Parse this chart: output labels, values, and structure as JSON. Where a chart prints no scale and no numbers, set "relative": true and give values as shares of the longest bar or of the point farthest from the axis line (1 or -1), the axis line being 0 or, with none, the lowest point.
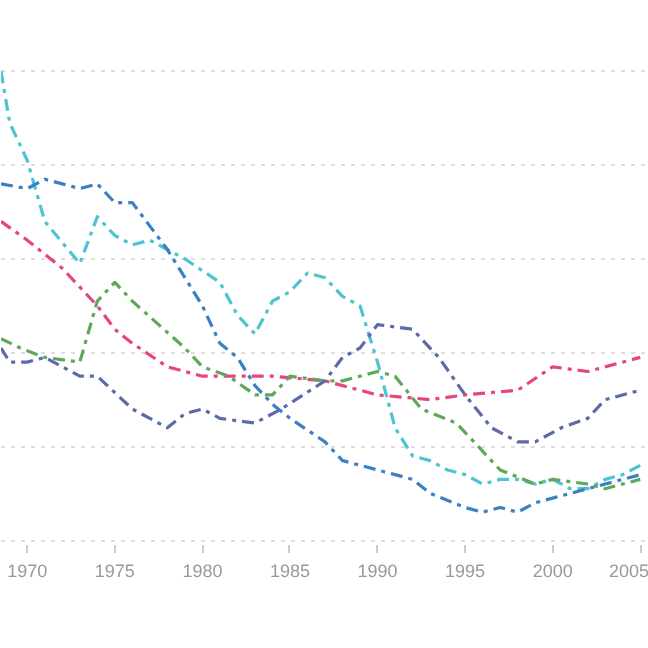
{
  "chart_data": {
    "type": "line",
    "relative": true,
    "grid": "y",
    "line_style": "dashdot",
    "xlim": [
      1968.5,
      2005.5
    ],
    "xticks": [
      1970,
      1975,
      1980,
      1985,
      1990,
      1995,
      2000,
      2005
    ],
    "series": [
      {
        "color": "#4dc4d1",
        "x": [
          1968.5,
          1969,
          1970,
          1971,
          1973,
          1974,
          1975,
          1976,
          1977,
          1978,
          1979,
          1981,
          1982,
          1983,
          1984,
          1985,
          1986,
          1987,
          1988,
          1989,
          1990,
          1991,
          1992,
          1993,
          1994,
          1995,
          1996,
          1997,
          1998,
          1999,
          2000,
          2001,
          2002,
          2003,
          2004,
          2005
        ],
        "values": [
          1.0,
          0.89,
          0.81,
          0.68,
          0.59,
          0.69,
          0.65,
          0.63,
          0.64,
          0.62,
          0.6,
          0.55,
          0.48,
          0.44,
          0.51,
          0.53,
          0.57,
          0.56,
          0.52,
          0.5,
          0.38,
          0.24,
          0.18,
          0.17,
          0.15,
          0.14,
          0.12,
          0.13,
          0.13,
          0.12,
          0.13,
          0.11,
          0.11,
          0.13,
          0.14,
          0.16
        ]
      },
      {
        "color": "#3a80c2",
        "x": [
          1968.5,
          1970,
          1971,
          1972,
          1973,
          1974,
          1975,
          1976,
          1977,
          1978,
          1979,
          1980,
          1981,
          1982,
          1983,
          1984,
          1985,
          1987,
          1988,
          1990,
          1991,
          1992,
          1993,
          1995,
          1996,
          1997,
          1998,
          1999,
          2000,
          2001,
          2002,
          2003,
          2005
        ],
        "values": [
          0.76,
          0.75,
          0.77,
          0.76,
          0.75,
          0.76,
          0.72,
          0.72,
          0.67,
          0.62,
          0.56,
          0.5,
          0.42,
          0.39,
          0.33,
          0.29,
          0.26,
          0.21,
          0.17,
          0.15,
          0.14,
          0.13,
          0.1,
          0.07,
          0.06,
          0.07,
          0.06,
          0.08,
          0.09,
          0.1,
          0.11,
          0.12,
          0.14
        ]
      },
      {
        "color": "#e8447e",
        "x": [
          1968.5,
          1970,
          1972,
          1974,
          1975,
          1976,
          1978,
          1980,
          1982,
          1984,
          1987,
          1990,
          1993,
          1995,
          1998,
          2000,
          2002,
          2005
        ],
        "values": [
          0.68,
          0.64,
          0.58,
          0.5,
          0.45,
          0.42,
          0.37,
          0.35,
          0.35,
          0.35,
          0.34,
          0.31,
          0.3,
          0.31,
          0.32,
          0.37,
          0.36,
          0.39
        ]
      },
      {
        "color": "#5fa85a",
        "x": [
          1968.5,
          1969.6,
          1971,
          1973,
          1974,
          1975,
          1976,
          1977.5,
          1979,
          1980,
          1981.5,
          1983,
          1984,
          1985,
          1987,
          1988,
          1990,
          1991,
          1992.5,
          1994.5,
          1996,
          1997,
          1999,
          2000,
          2002,
          2003,
          2005
        ],
        "values": [
          0.43,
          0.41,
          0.39,
          0.38,
          0.51,
          0.55,
          0.51,
          0.46,
          0.41,
          0.37,
          0.35,
          0.31,
          0.31,
          0.35,
          0.34,
          0.34,
          0.36,
          0.35,
          0.28,
          0.25,
          0.19,
          0.15,
          0.12,
          0.13,
          0.12,
          0.11,
          0.13
        ]
      },
      {
        "color": "#5c6aa8",
        "x": [
          1968.5,
          1969,
          1970,
          1971,
          1973,
          1974,
          1976,
          1978,
          1979,
          1980,
          1981,
          1983,
          1984.5,
          1987,
          1988,
          1989,
          1990,
          1992,
          1993.5,
          1995,
          1996.5,
          1998,
          1999,
          2000.5,
          2002,
          2003,
          2005
        ],
        "values": [
          0.41,
          0.38,
          0.38,
          0.39,
          0.35,
          0.35,
          0.28,
          0.24,
          0.27,
          0.28,
          0.26,
          0.25,
          0.28,
          0.34,
          0.39,
          0.41,
          0.46,
          0.45,
          0.39,
          0.31,
          0.24,
          0.21,
          0.21,
          0.24,
          0.26,
          0.3,
          0.32
        ]
      }
    ]
  }
}
